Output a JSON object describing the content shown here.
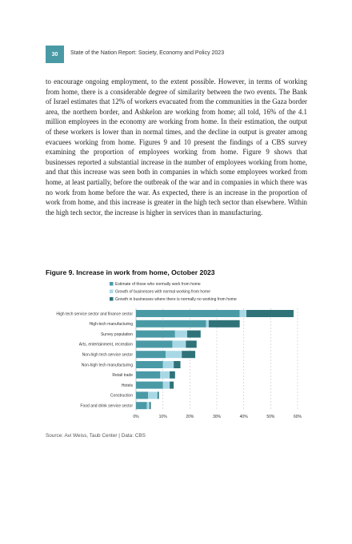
{
  "header": {
    "page_number": "30",
    "running_head": "State of the Nation Report: Society, Economy and Policy 2023"
  },
  "body": {
    "paragraph": "to encourage ongoing employment, to the extent possible. However, in terms of working from home, there is a considerable degree of similarity between the two events. The Bank of Israel estimates that 12% of workers evacuated from the communities in the Gaza border area, the northern border, and Ashkelon are working from home; all told, 16% of the 4.1 million employees in the economy are working from home. In their estimation, the output of these workers is lower than in normal times, and the decline in output is greater among evacuees working from home. Figures 9 and 10 present the findings of a CBS survey examining the proportion of employees working from home. Figure 9 shows that businesses reported a substantial increase in the number of employees working from home, and that this increase was seen both in companies in which some employees worked from home, at least partially, before the outbreak of the war and in companies in which there was no work from home before the war. As expected, there is an increase in the proportion of work from home, and this increase is greater in the high tech sector than elsewhere. Within the high tech sector, the increase is higher in services than in manufacturing."
  },
  "figure": {
    "title": "Figure 9. Increase in work from home, October 2023",
    "source": "Source: Avi Weiss, Taub Center | Data: CBS"
  },
  "chart_data": {
    "type": "bar",
    "orientation": "horizontal",
    "stacked": true,
    "categories": [
      "High tech service sector and finance sector",
      "High-tech manufacturing",
      "Survey population",
      "Arts, entertainment, recreation",
      "Non-high tech service sector",
      "Non-high tech manufacturing",
      "Retail trade",
      "Hotels",
      "Construction",
      "Food and drink service sector"
    ],
    "series": [
      {
        "name": "Estimate of those who normally work from home",
        "color": "#4a9aa6",
        "values": [
          38.5,
          26,
          14.5,
          13.5,
          11,
          10,
          9,
          10,
          4.5,
          4
        ]
      },
      {
        "name": "Growth of businesses with normal working from home",
        "color": "#a8d8e6",
        "values": [
          2.5,
          1,
          4.5,
          5,
          6,
          4,
          3.5,
          2.5,
          3.5,
          1
        ]
      },
      {
        "name": "Growth in businesses where there is normally no working from home",
        "color": "#2f7379",
        "values": [
          17.5,
          11.5,
          5,
          4,
          5,
          2.5,
          2,
          1.5,
          0.5,
          0.5
        ]
      }
    ],
    "x_ticks": [
      "0%",
      "10%",
      "20%",
      "30%",
      "40%",
      "50%",
      "60%"
    ],
    "xlim": [
      0,
      60
    ],
    "grid": "vertical dashed",
    "legend": "top"
  }
}
